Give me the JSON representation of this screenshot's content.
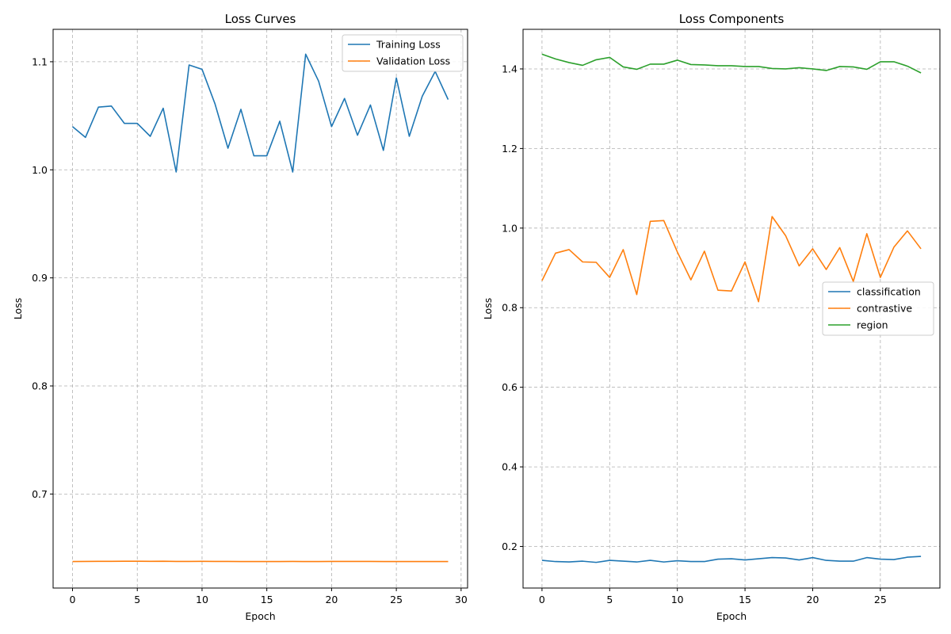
{
  "chart_data": [
    {
      "type": "line",
      "title": "Loss Curves",
      "xlabel": "Epoch",
      "ylabel": "Loss",
      "xlim": [
        -1.5,
        30.5
      ],
      "ylim": [
        0.613,
        1.13
      ],
      "xticks": [
        0,
        5,
        10,
        15,
        20,
        25,
        30
      ],
      "yticks": [
        0.7,
        0.8,
        0.9,
        1.0,
        1.1
      ],
      "ytick_format": 1,
      "grid": true,
      "legend_position": "top-right",
      "series": [
        {
          "name": "Training Loss",
          "color": "#1f77b4",
          "x": [
            0,
            1,
            2,
            3,
            4,
            5,
            6,
            7,
            8,
            9,
            10,
            11,
            12,
            13,
            14,
            15,
            16,
            17,
            18,
            19,
            20,
            21,
            22,
            23,
            24,
            25,
            26,
            27,
            28,
            29
          ],
          "y": [
            1.04,
            1.03,
            1.058,
            1.059,
            1.043,
            1.043,
            1.031,
            1.057,
            0.998,
            1.097,
            1.093,
            1.061,
            1.02,
            1.056,
            1.013,
            1.013,
            1.045,
            0.998,
            1.107,
            1.082,
            1.04,
            1.066,
            1.032,
            1.06,
            1.018,
            1.085,
            1.031,
            1.068,
            1.091,
            1.065
          ]
        },
        {
          "name": "Validation Loss",
          "color": "#ff7f0e",
          "x": [
            0,
            1,
            2,
            3,
            4,
            5,
            6,
            7,
            8,
            9,
            10,
            11,
            12,
            13,
            14,
            15,
            16,
            17,
            18,
            19,
            20,
            21,
            22,
            23,
            24,
            25,
            26,
            27,
            28,
            29
          ],
          "y": [
            0.6375,
            0.6376,
            0.6377,
            0.6377,
            0.6378,
            0.6378,
            0.6377,
            0.6378,
            0.6376,
            0.6376,
            0.6377,
            0.6376,
            0.6376,
            0.6375,
            0.6375,
            0.6375,
            0.6375,
            0.6376,
            0.6375,
            0.6375,
            0.6376,
            0.6376,
            0.6376,
            0.6376,
            0.6375,
            0.6375,
            0.6375,
            0.6375,
            0.6375,
            0.6375
          ]
        }
      ]
    },
    {
      "type": "line",
      "title": "Loss Components",
      "xlabel": "Epoch",
      "ylabel": "Loss",
      "xlim": [
        -1.4,
        29.4
      ],
      "ylim": [
        0.0955,
        1.4995
      ],
      "xticks": [
        0,
        5,
        10,
        15,
        20,
        25
      ],
      "yticks": [
        0.2,
        0.4,
        0.6,
        0.8,
        1.0,
        1.2,
        1.4
      ],
      "ytick_format": 1,
      "grid": true,
      "legend_position": "center-right",
      "series": [
        {
          "name": "classification",
          "color": "#1f77b4",
          "x": [
            0,
            1,
            2,
            3,
            4,
            5,
            6,
            7,
            8,
            9,
            10,
            11,
            12,
            13,
            14,
            15,
            16,
            17,
            18,
            19,
            20,
            21,
            22,
            23,
            24,
            25,
            26,
            27,
            28
          ],
          "y": [
            0.165,
            0.162,
            0.161,
            0.163,
            0.16,
            0.165,
            0.163,
            0.161,
            0.165,
            0.161,
            0.164,
            0.162,
            0.162,
            0.168,
            0.169,
            0.166,
            0.169,
            0.172,
            0.171,
            0.166,
            0.172,
            0.165,
            0.163,
            0.163,
            0.172,
            0.168,
            0.167,
            0.173,
            0.175
          ]
        },
        {
          "name": "contrastive",
          "color": "#ff7f0e",
          "x": [
            0,
            1,
            2,
            3,
            4,
            5,
            6,
            7,
            8,
            9,
            10,
            11,
            12,
            13,
            14,
            15,
            16,
            17,
            18,
            19,
            20,
            21,
            22,
            23,
            24,
            25,
            26,
            27,
            28
          ],
          "y": [
            0.868,
            0.937,
            0.946,
            0.915,
            0.914,
            0.876,
            0.946,
            0.833,
            1.017,
            1.019,
            0.94,
            0.87,
            0.942,
            0.844,
            0.842,
            0.915,
            0.815,
            1.029,
            0.981,
            0.905,
            0.948,
            0.896,
            0.951,
            0.866,
            0.986,
            0.876,
            0.952,
            0.993,
            0.948
          ]
        },
        {
          "name": "region",
          "color": "#2ca02c",
          "x": [
            0,
            1,
            2,
            3,
            4,
            5,
            6,
            7,
            8,
            9,
            10,
            11,
            12,
            13,
            14,
            15,
            16,
            17,
            18,
            19,
            20,
            21,
            22,
            23,
            24,
            25,
            26,
            27,
            28
          ],
          "y": [
            1.437,
            1.425,
            1.416,
            1.409,
            1.423,
            1.429,
            1.405,
            1.399,
            1.412,
            1.412,
            1.422,
            1.411,
            1.41,
            1.408,
            1.408,
            1.406,
            1.406,
            1.401,
            1.4,
            1.403,
            1.4,
            1.396,
            1.406,
            1.405,
            1.399,
            1.418,
            1.418,
            1.407,
            1.39
          ]
        }
      ]
    }
  ]
}
